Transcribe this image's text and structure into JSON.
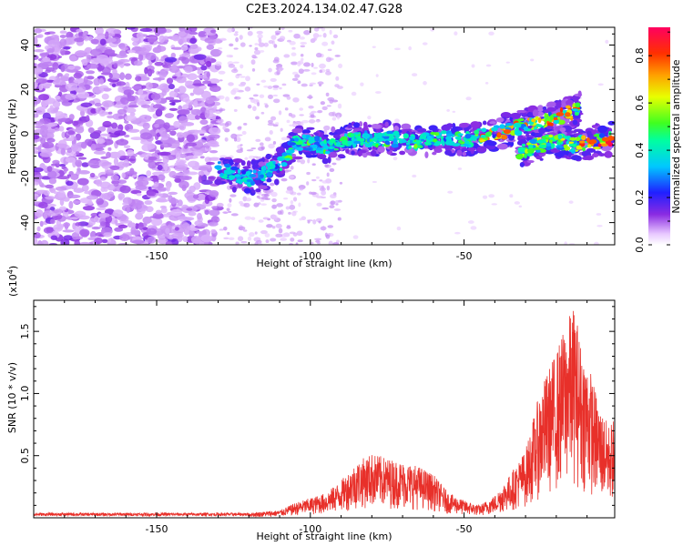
{
  "title": "C2E3.2024.134.02.47.G28",
  "chart_data": [
    {
      "type": "heatmap",
      "xlabel": "Height of straight line (km)",
      "ylabel": "Frequency (Hz)",
      "xlim": [
        -190,
        -1
      ],
      "ylim": [
        -50,
        48
      ],
      "xticks": [
        -150,
        -100,
        -50
      ],
      "yticks": [
        -40,
        -20,
        0,
        20,
        40
      ],
      "colorbar": {
        "label": "Normalized spectral amplitude",
        "range": [
          0.0,
          0.92
        ],
        "ticks": [
          "0.0",
          "0.2",
          "0.4",
          "0.6",
          "0.8"
        ]
      },
      "ridge": {
        "description": "main trace of frequency vs height",
        "points": [
          {
            "x": -130,
            "f": -15
          },
          {
            "x": -125,
            "f": -18
          },
          {
            "x": -120,
            "f": -20
          },
          {
            "x": -115,
            "f": -18
          },
          {
            "x": -110,
            "f": -14
          },
          {
            "x": -105,
            "f": -4
          },
          {
            "x": -100,
            "f": -4
          },
          {
            "x": -95,
            "f": -6
          },
          {
            "x": -90,
            "f": -4
          },
          {
            "x": -85,
            "f": -2
          },
          {
            "x": -80,
            "f": -3
          },
          {
            "x": -75,
            "f": -2
          },
          {
            "x": -70,
            "f": -3
          },
          {
            "x": -65,
            "f": -4
          },
          {
            "x": -60,
            "f": -2
          },
          {
            "x": -55,
            "f": -2
          },
          {
            "x": -50,
            "f": -3
          },
          {
            "x": -45,
            "f": -1
          },
          {
            "x": -40,
            "f": 0
          },
          {
            "x": -35,
            "f": 2
          },
          {
            "x": -30,
            "f": 4
          },
          {
            "x": -25,
            "f": 5
          },
          {
            "x": -20,
            "f": 7
          },
          {
            "x": -15,
            "f": 10
          },
          {
            "x": -12,
            "f": 12
          }
        ],
        "branch": [
          {
            "x": -32,
            "f": -8
          },
          {
            "x": -25,
            "f": -5
          },
          {
            "x": -20,
            "f": -3
          },
          {
            "x": -15,
            "f": -5
          },
          {
            "x": -10,
            "f": -4
          },
          {
            "x": -5,
            "f": -3
          },
          {
            "x": -2,
            "f": -2
          }
        ]
      }
    },
    {
      "type": "line",
      "xlabel": "Height of straight line (km)",
      "ylabel": "SNR (10 * v/v)",
      "yscale_note": "(x10",
      "yscale_exp": "4",
      "yscale_close": ")",
      "xlim": [
        -190,
        -1
      ],
      "ylim": [
        0,
        1.75
      ],
      "xticks": [
        -150,
        -100,
        -50
      ],
      "yticks": [
        0.5,
        1.0,
        1.5
      ],
      "ytick_labels": [
        "0.5",
        "1.0",
        "1.5"
      ],
      "series": [
        {
          "name": "SNR",
          "color": "#e8302a",
          "envelope": [
            {
              "x": -190,
              "v": 0.03
            },
            {
              "x": -170,
              "v": 0.03
            },
            {
              "x": -150,
              "v": 0.03
            },
            {
              "x": -130,
              "v": 0.03
            },
            {
              "x": -120,
              "v": 0.04
            },
            {
              "x": -110,
              "v": 0.06
            },
            {
              "x": -105,
              "v": 0.12
            },
            {
              "x": -100,
              "v": 0.16
            },
            {
              "x": -95,
              "v": 0.2
            },
            {
              "x": -90,
              "v": 0.3
            },
            {
              "x": -85,
              "v": 0.45
            },
            {
              "x": -80,
              "v": 0.52
            },
            {
              "x": -75,
              "v": 0.48
            },
            {
              "x": -70,
              "v": 0.45
            },
            {
              "x": -65,
              "v": 0.42
            },
            {
              "x": -60,
              "v": 0.35
            },
            {
              "x": -55,
              "v": 0.2
            },
            {
              "x": -50,
              "v": 0.14
            },
            {
              "x": -45,
              "v": 0.1
            },
            {
              "x": -40,
              "v": 0.18
            },
            {
              "x": -35,
              "v": 0.35
            },
            {
              "x": -30,
              "v": 0.55
            },
            {
              "x": -25,
              "v": 1.05
            },
            {
              "x": -20,
              "v": 1.35
            },
            {
              "x": -16,
              "v": 1.62
            },
            {
              "x": -14,
              "v": 1.72
            },
            {
              "x": -12,
              "v": 1.4
            },
            {
              "x": -9,
              "v": 1.2
            },
            {
              "x": -6,
              "v": 0.9
            },
            {
              "x": -3,
              "v": 0.75
            },
            {
              "x": -1,
              "v": 0.8
            }
          ]
        }
      ]
    }
  ]
}
